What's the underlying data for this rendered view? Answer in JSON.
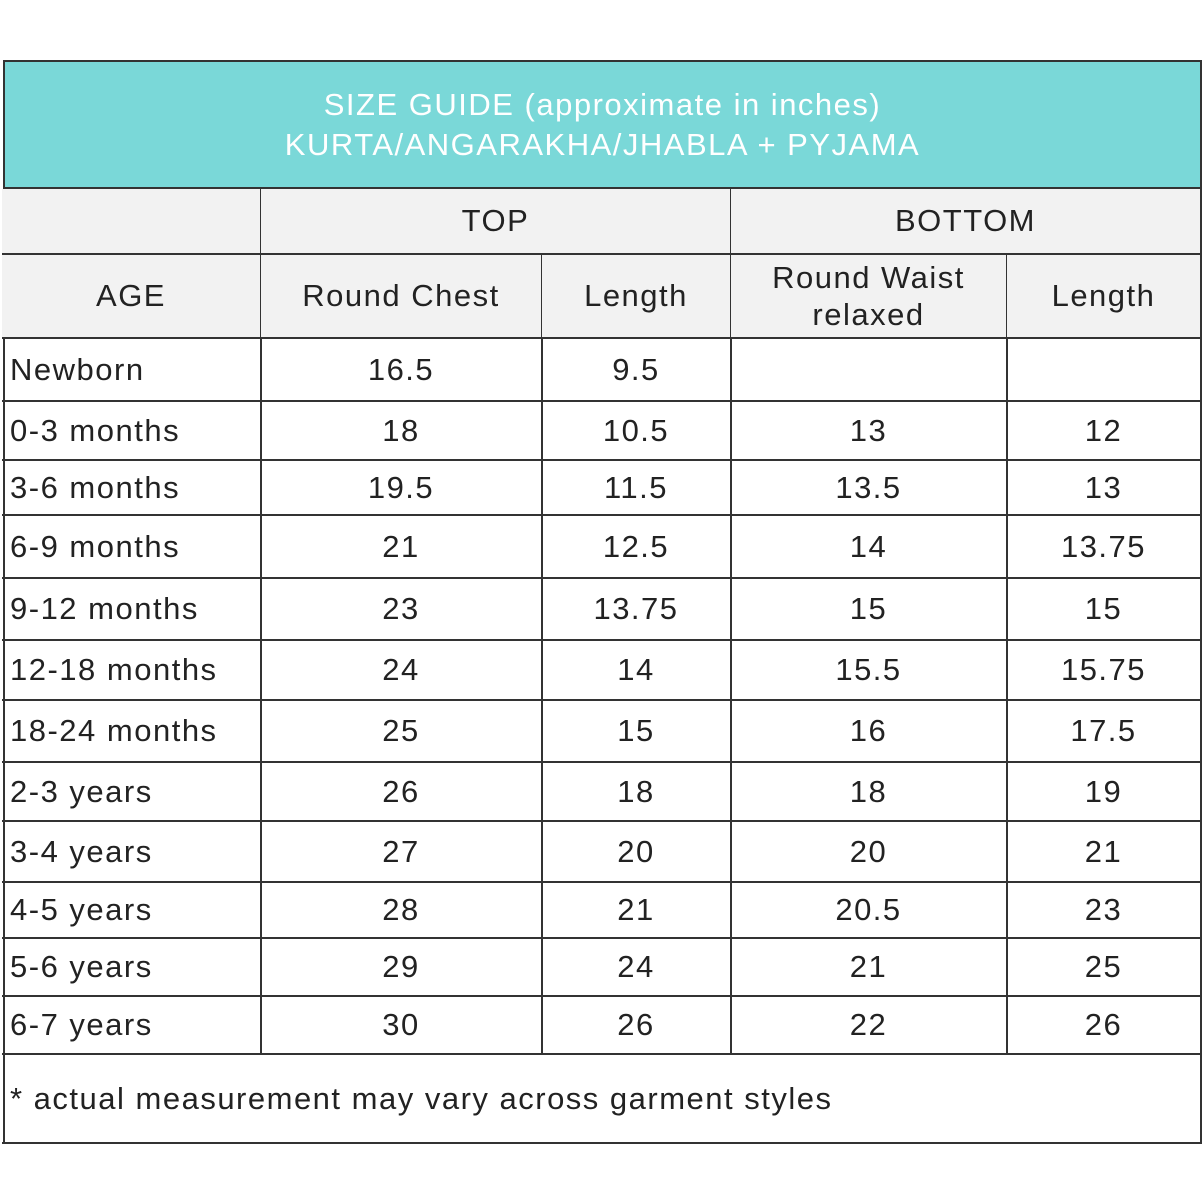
{
  "header": {
    "title": [
      "SIZE GUIDE (approximate in inches)",
      "KURTA/ANGARAKHA/JHABLA + PYJAMA"
    ]
  },
  "table": {
    "group_headers": [
      "TOP",
      "BOTTOM"
    ],
    "columns": [
      "AGE",
      "Round Chest",
      "Length",
      "Round Waist relaxed",
      "Length"
    ],
    "rows": [
      [
        "Newborn",
        "16.5",
        "9.5",
        null,
        null
      ],
      [
        "0-3 months",
        "18",
        "10.5",
        "13",
        "12"
      ],
      [
        "3-6 months",
        "19.5",
        "11.5",
        "13.5",
        "13"
      ],
      [
        "6-9 months",
        "21",
        "12.5",
        "14",
        "13.75"
      ],
      [
        "9-12 months",
        "23",
        "13.75",
        "15",
        "15"
      ],
      [
        "12-18 months",
        "24",
        "14",
        "15.5",
        "15.75"
      ],
      [
        "18-24 months",
        "25",
        "15",
        "16",
        "17.5"
      ],
      [
        "2-3 years",
        "26",
        "18",
        "18",
        "19"
      ],
      [
        "3-4 years",
        "27",
        "20",
        "20",
        "21"
      ],
      [
        "4-5 years",
        "28",
        "21",
        "20.5",
        "23"
      ],
      [
        "5-6 years",
        "29",
        "24",
        "21",
        "25"
      ],
      [
        "6-7 years",
        "30",
        "26",
        "22",
        "26"
      ]
    ]
  },
  "footnote": "* actual measurement may vary across garment styles"
}
